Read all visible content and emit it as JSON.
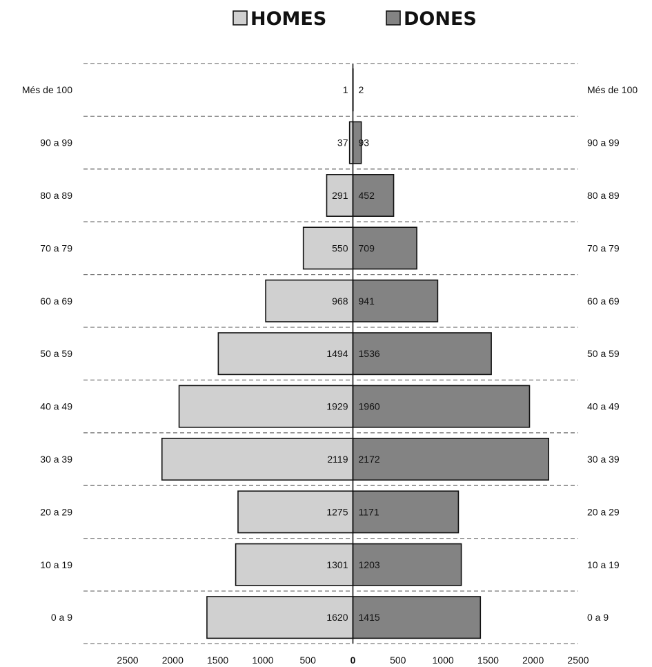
{
  "chart_data": {
    "type": "bar",
    "orientation": "horizontal-pyramid",
    "title": "",
    "xlabel": "",
    "ylabel": "",
    "xlim": [
      -2500,
      2500
    ],
    "grid": false,
    "legend_position": "top-center",
    "categories": [
      "Més de 100",
      "90 a 99",
      "80 a 89",
      "70 a 79",
      "60 a 69",
      "50 a 59",
      "40 a 49",
      "30 a 39",
      "20 a 29",
      "10 a 19",
      "0 a 9"
    ],
    "series": [
      {
        "name": "HOMES",
        "side": "left",
        "color": "#d0d0d0",
        "values": [
          1,
          37,
          291,
          550,
          968,
          1494,
          1929,
          2119,
          1275,
          1301,
          1620
        ]
      },
      {
        "name": "DONES",
        "side": "right",
        "color": "#838383",
        "values": [
          2,
          93,
          452,
          709,
          941,
          1536,
          1960,
          2172,
          1171,
          1203,
          1415
        ]
      }
    ],
    "x_ticks": [
      {
        "value": -2500,
        "label": "2500"
      },
      {
        "value": -2000,
        "label": "2000"
      },
      {
        "value": -1500,
        "label": "1500"
      },
      {
        "value": -1000,
        "label": "1000"
      },
      {
        "value": -500,
        "label": "500"
      },
      {
        "value": 0,
        "label": "0"
      },
      {
        "value": 500,
        "label": "500"
      },
      {
        "value": 1000,
        "label": "1000"
      },
      {
        "value": 1500,
        "label": "1500"
      },
      {
        "value": 2000,
        "label": "2000"
      },
      {
        "value": 2500,
        "label": "2500"
      }
    ]
  }
}
